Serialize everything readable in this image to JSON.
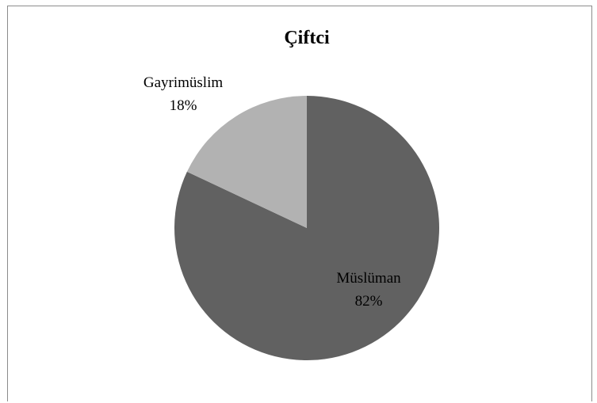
{
  "chart_data": {
    "type": "pie",
    "title": "Çiftci",
    "slices": [
      {
        "label": "Müslüman",
        "value": 82,
        "percent_label": "82%",
        "color": "#616161"
      },
      {
        "label": "Gayrimüslim",
        "value": 18,
        "percent_label": "18%",
        "color": "#b2b2b2"
      }
    ],
    "start_angle_deg": 0,
    "direction": "clockwise",
    "legend": "none",
    "labels": "on-slice"
  }
}
